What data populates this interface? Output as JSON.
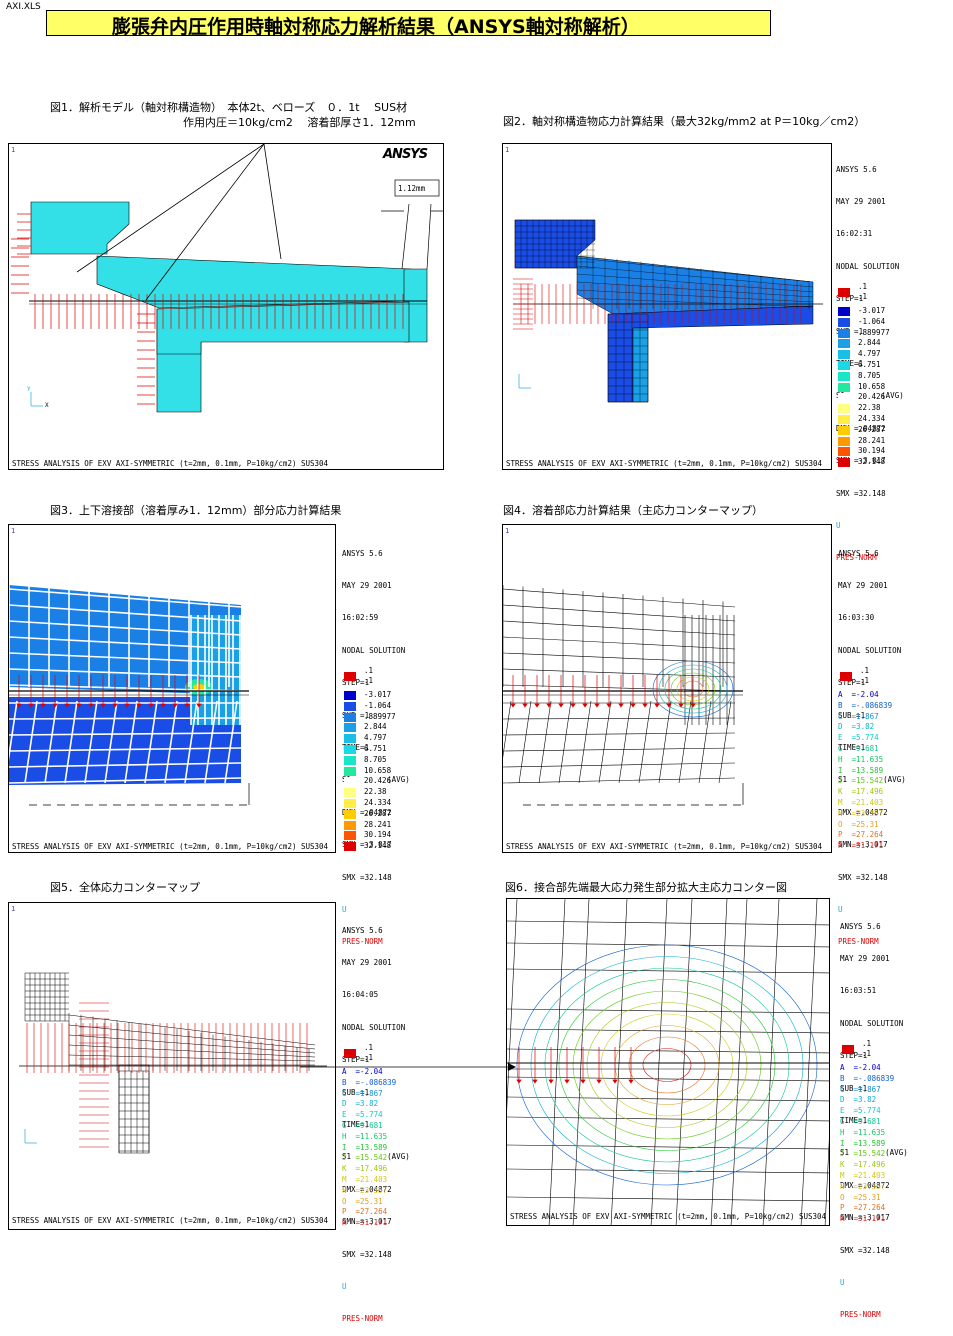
{
  "sheet_name": "AXI.XLS",
  "title": "膨張弁内圧作用時軸対称応力解析結果（ANSYS軸対称解析）",
  "captions": {
    "fig1_line1": "図1．解析モデル（軸対称構造物）　本体2t、ベローズ　０．1t　 SUS材",
    "fig1_line2": "作用内圧＝10kg/cm2　 溶着部厚さ1．12mm",
    "fig2": "図2．軸対称構造物応力計算結果（最大32kg/mm2  at  P＝10kg／cm2）",
    "fig3": "図3．上下溶接部（溶着厚み1．12mm）部分応力計算結果",
    "fig4": "図4．溶着部応力計算結果（主応力コンターマップ）",
    "fig5": "図5．全体応力コンターマップ",
    "fig6": "図6．接合部先端最大応力発生部分拡大主応力コンター図"
  },
  "panel_number": "1",
  "logo": "ANSYS",
  "dimension_label": "1.12mm",
  "footer": "STRESS ANALYSIS OF EXV AXI-SYMMETRIC (t=2mm, 0.1mm, P=10kg/cm2) SUS304",
  "axis": {
    "y": "Y",
    "z": "Z",
    "x": "X"
  },
  "header_common": {
    "version": "ANSYS 5.6",
    "date": "MAY 29 2001",
    "solution": "NODAL SOLUTION",
    "step": "STEP=1",
    "sub": "SUB =1",
    "time": "TIME=1",
    "s1": "S1        (AVG)",
    "dmx": "DMX =.04872",
    "smn": "SMN =-3.017",
    "smx": "SMX =32.148",
    "u": "U",
    "pres": "PRES-NORM",
    "p1": ".1",
    "p2": ".1"
  },
  "times": {
    "fig2": "16:02:31",
    "fig3": "16:02:59",
    "fig4": "16:03:30",
    "fig5": "16:04:05",
    "fig6": "16:03:51"
  },
  "band_legend": [
    {
      "value": "-3.017",
      "color": "#0000cc"
    },
    {
      "value": "-1.064",
      "color": "#1a4ce6"
    },
    {
      "value": ".889977",
      "color": "#1a80e6"
    },
    {
      "value": "2.844",
      "color": "#19a0e6"
    },
    {
      "value": "4.797",
      "color": "#19c0e6"
    },
    {
      "value": "6.751",
      "color": "#19d9e6"
    },
    {
      "value": "8.705",
      "color": "#19e6c8"
    },
    {
      "value": "10.658",
      "color": "#22e8a0"
    },
    {
      "value": "20.426",
      "color": "#ffffff"
    },
    {
      "value": "22.38",
      "color": "#ffff80"
    },
    {
      "value": "24.334",
      "color": "#ffee44"
    },
    {
      "value": "26.287",
      "color": "#ffcc00"
    },
    {
      "value": "28.241",
      "color": "#ff9900"
    },
    {
      "value": "30.194",
      "color": "#ff5500"
    },
    {
      "value": "32.148",
      "color": "#dd0000"
    }
  ],
  "contour_legend": [
    {
      "text": "A  =-2.04",
      "color": "#0000cc"
    },
    {
      "text": "B  =-.086839",
      "color": "#1060d0"
    },
    {
      "text": "C  =1.867",
      "color": "#1090d0"
    },
    {
      "text": "D  =3.82",
      "color": "#10b0d0"
    },
    {
      "text": "E  =5.774",
      "color": "#10c8c8"
    },
    {
      "text": "G  =9.681",
      "color": "#10c890"
    },
    {
      "text": "H  =11.635",
      "color": "#10c860"
    },
    {
      "text": "I  =13.589",
      "color": "#20c830"
    },
    {
      "text": "J  =15.542",
      "color": "#60c810"
    },
    {
      "text": "K  =17.496",
      "color": "#a0c810"
    },
    {
      "text": "M  =21.403",
      "color": "#d0c810"
    },
    {
      "text": "N  =23.357",
      "color": "#e0c020"
    },
    {
      "text": "O  =25.31",
      "color": "#e0a020"
    },
    {
      "text": "P  =27.264",
      "color": "#e07020"
    },
    {
      "text": "R  =31.171",
      "color": "#dd2020"
    }
  ],
  "colors": {
    "model_fill": "#33e0e8",
    "arrow": "#dd0000",
    "mesh": "#000000",
    "title_bg": "#ffff66"
  }
}
